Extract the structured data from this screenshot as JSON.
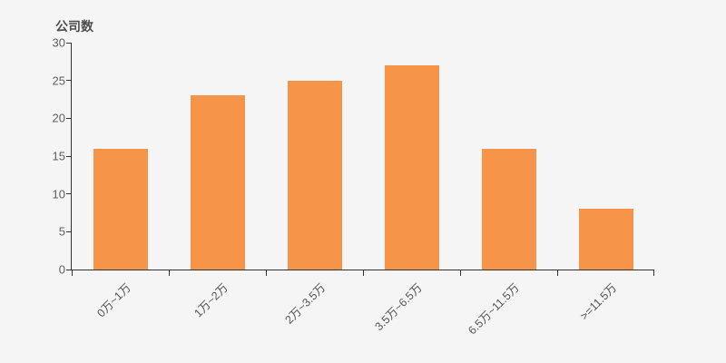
{
  "chart_data": {
    "type": "bar",
    "title": "公司数",
    "ylabel": "公司数",
    "xlabel": "",
    "categories": [
      "0万~1万",
      "1万~2万",
      "2万~3.5万",
      "3.5万~6.5万",
      "6.5万~11.5万",
      ">=11.5万"
    ],
    "values": [
      16,
      23,
      25,
      27,
      16,
      8
    ],
    "ylim": [
      0,
      30
    ],
    "yticks": [
      0,
      5,
      10,
      15,
      20,
      25,
      30
    ],
    "grid": false,
    "legend_position": "none",
    "bar_color": "#f6954a",
    "axis_color": "#333333",
    "tick_label_color": "#5e5e5e",
    "x_label_color": "#555555",
    "title_color": "#4d4d4d",
    "background_color": "#f5f5f5"
  }
}
